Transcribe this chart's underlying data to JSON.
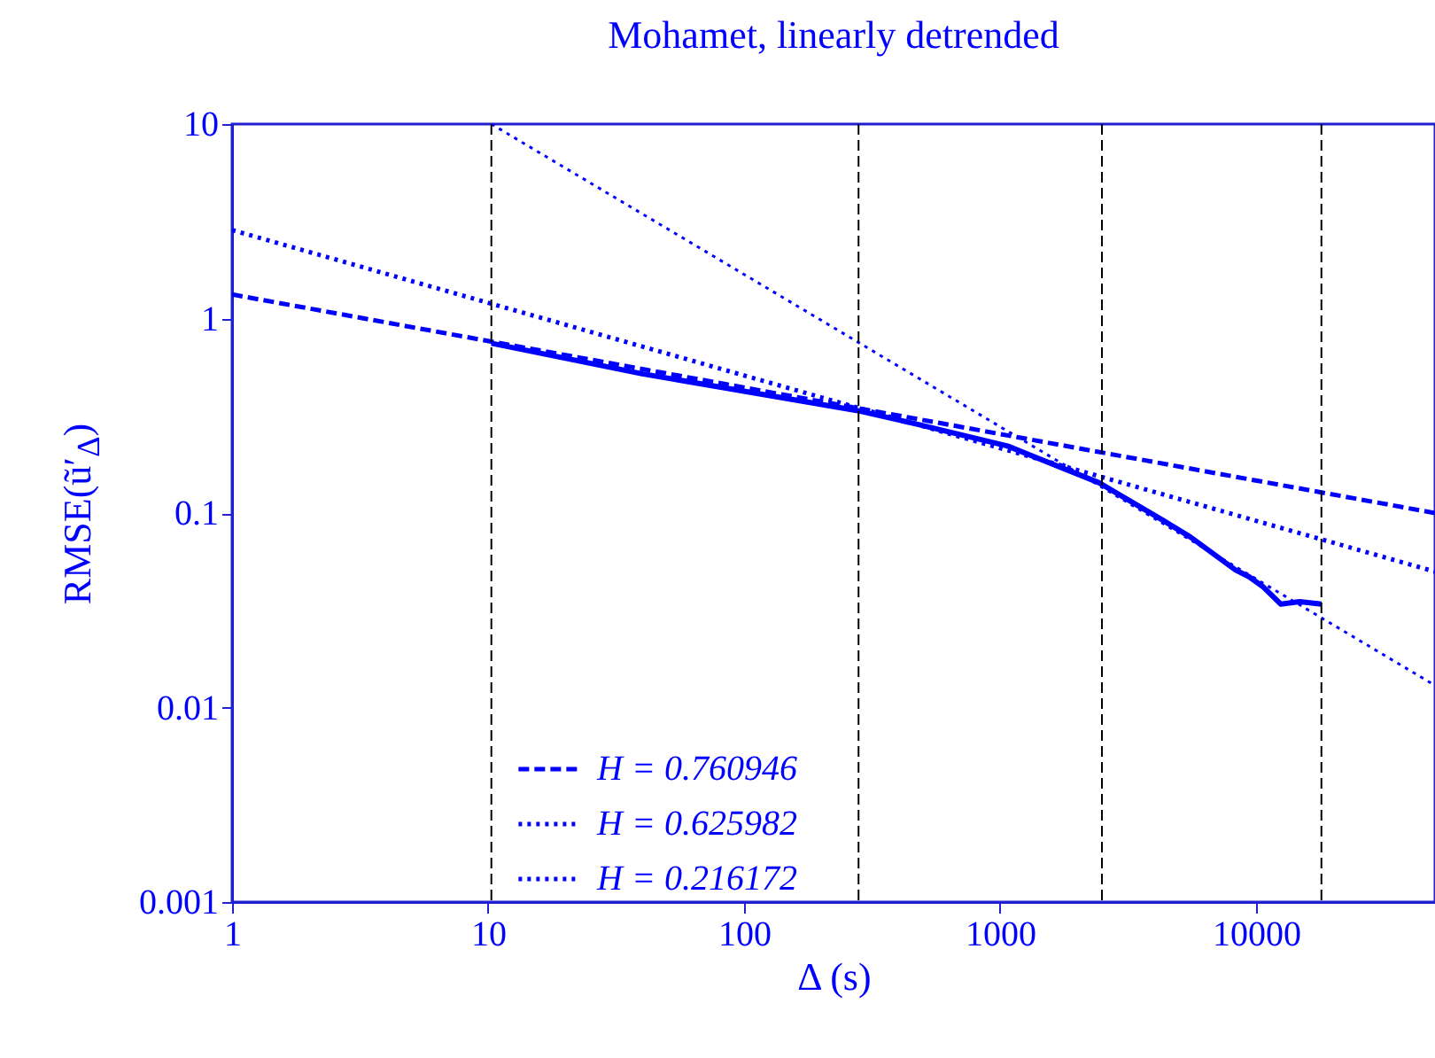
{
  "chart_data": {
    "type": "line",
    "title": "Mohamet, linearly detrended",
    "xlabel": "Δ (s)",
    "ylabel": "RMSE(ũ′$_{Δ}$)",
    "log": "xy",
    "grid": false,
    "legend": "bottom",
    "marker": "none",
    "xlim": [
      1,
      50000
    ],
    "xticks": [
      1,
      10,
      100,
      1000,
      10000
    ],
    "ylim": [
      0.001,
      10
    ],
    "yticks": [
      0.001,
      0.01,
      0.1,
      1,
      10
    ],
    "series": [
      {
        "color": "#0000ff",
        "line_style": "solid",
        "x": [
          10.3,
          40,
          275,
          465,
          1070,
          2440,
          4310,
          5560,
          8300,
          9400,
          10600,
          12500,
          14800,
          18000
        ],
        "values": [
          0.746,
          0.52,
          0.337,
          0.288,
          0.221,
          0.143,
          0.092,
          0.075,
          0.051,
          0.047,
          0.042,
          0.034,
          0.035,
          0.034
        ]
      },
      {
        "name": "H = 0.760946",
        "color": "#0000ff",
        "line_style": "dashed",
        "x": [
          1,
          50000
        ],
        "values": [
          1.33,
          0.1
        ]
      },
      {
        "name": "H = 0.625982",
        "color": "#0000ff",
        "line_style": "dotted",
        "x": [
          1,
          50000
        ],
        "values": [
          2.85,
          0.05
        ]
      },
      {
        "name": "H = 0.216172",
        "color": "#0000ff",
        "line_style": "dotted",
        "x": [
          10.3,
          50000
        ],
        "values": [
          10,
          0.013
        ]
      }
    ],
    "ref_lines": [
      {
        "axis": "x",
        "value": 10.3,
        "color": "#000000",
        "line_style": "dashed"
      },
      {
        "axis": "x",
        "value": 280,
        "color": "#000000",
        "line_style": "dashed"
      },
      {
        "axis": "x",
        "value": 2500,
        "color": "#000000",
        "line_style": "dashed"
      },
      {
        "axis": "x",
        "value": 18000,
        "color": "#000000",
        "line_style": "dashed"
      }
    ]
  }
}
